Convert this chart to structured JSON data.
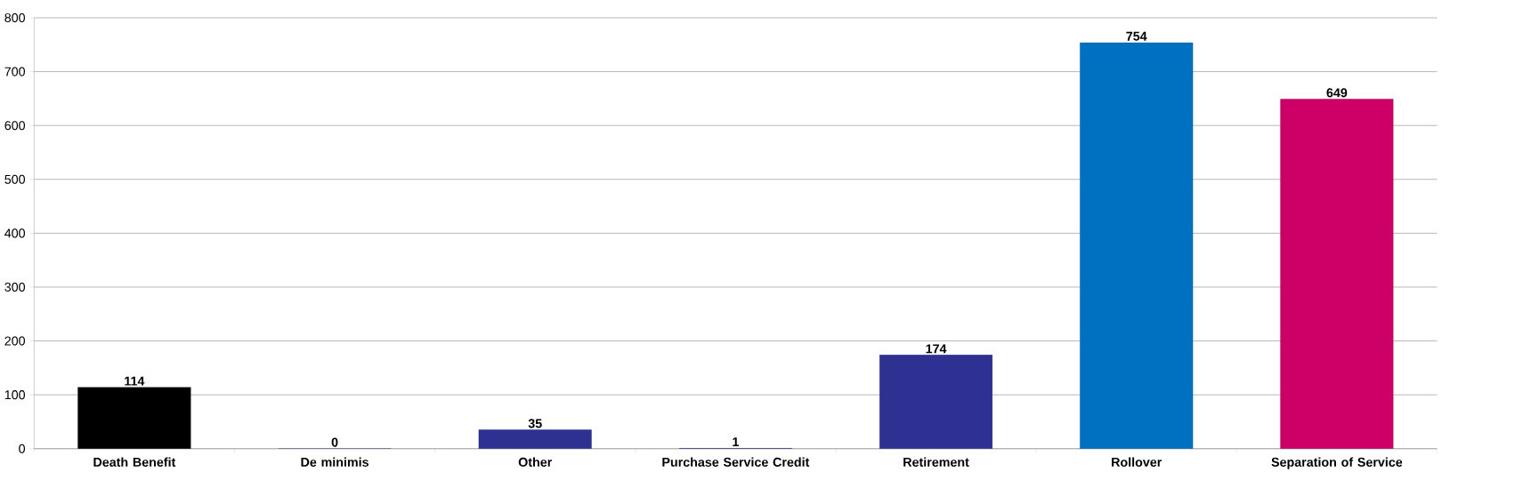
{
  "chart_data": {
    "type": "bar",
    "categories": [
      "Death Benefit",
      "De minimis",
      "Other",
      "Purchase Service Credit",
      "Retirement",
      "Rollover",
      "Separation of Service"
    ],
    "values": [
      114,
      0,
      35,
      1,
      174,
      754,
      649
    ],
    "colors": [
      "#000000",
      "#2e3192",
      "#2e3192",
      "#2e3192",
      "#2e3192",
      "#0070c0",
      "#cc0066"
    ],
    "ylim": [
      0,
      800
    ],
    "yticks": [
      0,
      100,
      200,
      300,
      400,
      500,
      600,
      700,
      800
    ],
    "grid": "y",
    "data_labels": true
  }
}
